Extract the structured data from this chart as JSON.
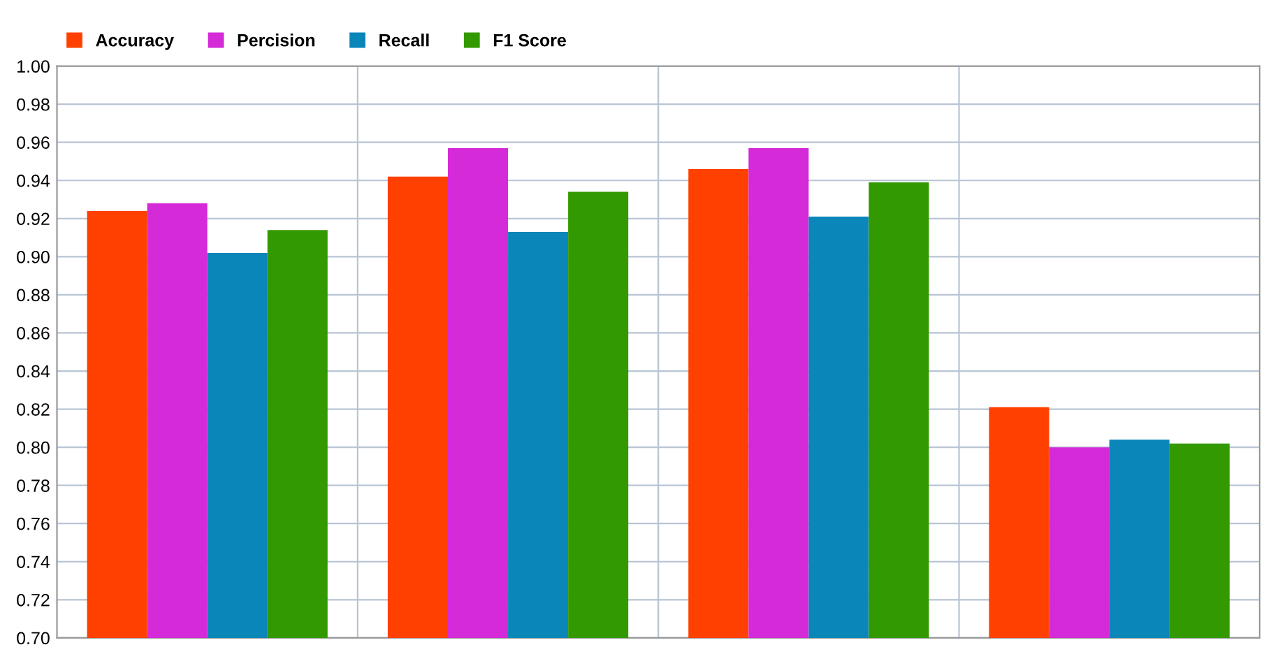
{
  "chart_data": {
    "type": "bar",
    "categories": [
      null,
      null,
      null,
      null
    ],
    "series": [
      {
        "name": "Accuracy",
        "color": "#ff4000",
        "values": [
          0.924,
          0.942,
          0.946,
          0.821
        ]
      },
      {
        "name": "Percision",
        "color": "#d42ad8",
        "values": [
          0.928,
          0.957,
          0.957,
          0.8
        ]
      },
      {
        "name": "Recall",
        "color": "#0a86b8",
        "values": [
          0.902,
          0.913,
          0.921,
          0.804
        ]
      },
      {
        "name": "F1 Score",
        "color": "#339900",
        "values": [
          0.914,
          0.934,
          0.939,
          0.802
        ]
      }
    ],
    "ylim": [
      0.7,
      1.0
    ],
    "yticks": [
      {
        "value": 0.7,
        "label": "0.70"
      },
      {
        "value": 0.72,
        "label": "0.72"
      },
      {
        "value": 0.74,
        "label": "0.74"
      },
      {
        "value": 0.76,
        "label": "0.76"
      },
      {
        "value": 0.78,
        "label": "0.78"
      },
      {
        "value": 0.8,
        "label": "0.80"
      },
      {
        "value": 0.82,
        "label": "0.82"
      },
      {
        "value": 0.84,
        "label": "0.84"
      },
      {
        "value": 0.86,
        "label": "0.86"
      },
      {
        "value": 0.88,
        "label": "0.88"
      },
      {
        "value": 0.9,
        "label": "0.90"
      },
      {
        "value": 0.92,
        "label": "0.92"
      },
      {
        "value": 0.94,
        "label": "0.94"
      },
      {
        "value": 0.96,
        "label": "0.96"
      },
      {
        "value": 0.98,
        "label": "0.98"
      },
      {
        "value": 1.0,
        "label": "1.00"
      }
    ],
    "grid": true,
    "legend": "top left"
  }
}
